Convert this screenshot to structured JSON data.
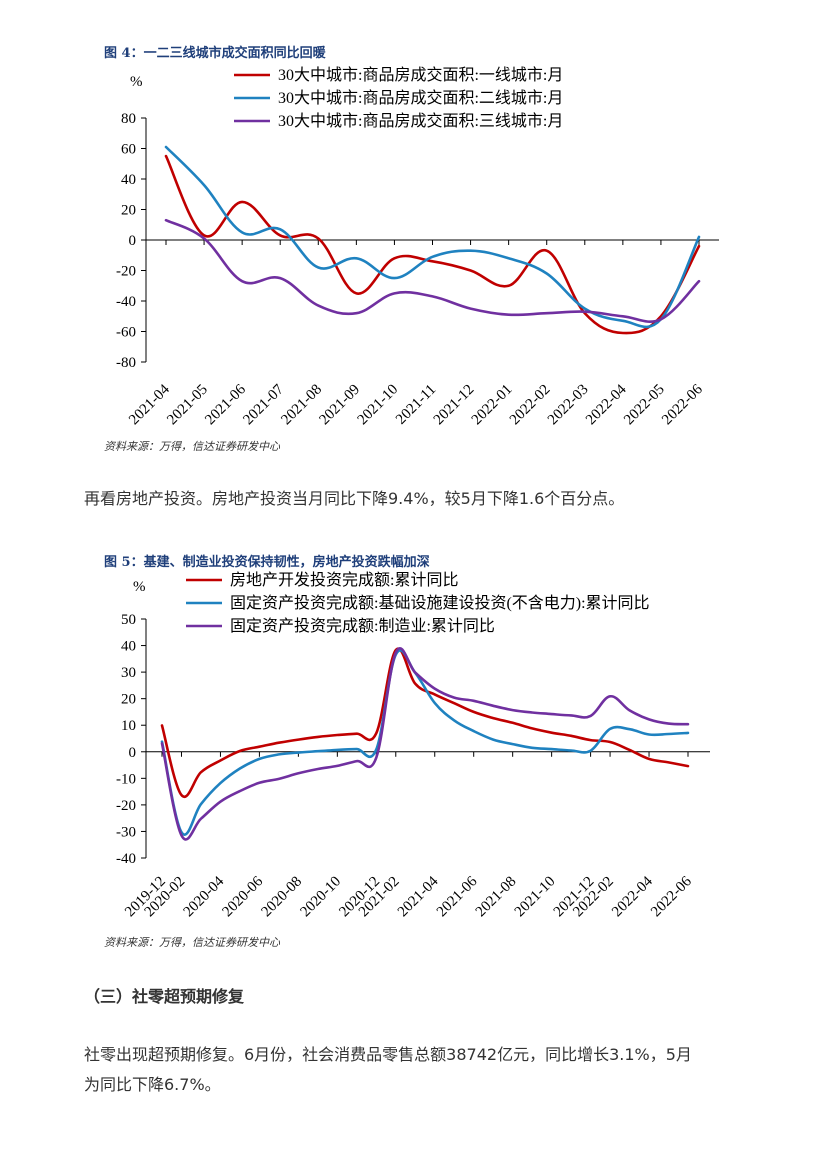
{
  "figures": [
    {
      "title": "图 4：一二三线城市成交面积同比回暖",
      "source": "资料来源：万得，信达证券研发中心",
      "unit": "%",
      "chart_data": {
        "type": "line",
        "title": "图 4：一二三线城市成交面积同比回暖",
        "ylabel": "%",
        "ylim": [
          -80,
          80
        ],
        "yticks": [
          "80",
          "60",
          "40",
          "20",
          "0",
          "-20",
          "-40",
          "-60",
          "-80"
        ],
        "yticks_values": [
          80,
          60,
          40,
          20,
          0,
          -20,
          -40,
          -60,
          -80
        ],
        "categories": [
          "2021-04",
          "2021-05",
          "2021-06",
          "2021-07",
          "2021-08",
          "2021-09",
          "2021-10",
          "2021-11",
          "2021-12",
          "2022-01",
          "2022-02",
          "2022-03",
          "2022-04",
          "2022-05",
          "2022-06"
        ],
        "series": [
          {
            "name": "30大中城市:商品房成交面积:一线城市:月",
            "color": "#c00000",
            "values": [
              55,
              3,
              25,
              3,
              1,
              -35,
              -12,
              -14,
              -20,
              -30,
              -7,
              -48,
              -61,
              -50,
              -4
            ]
          },
          {
            "name": "30大中城市:商品房成交面积:二线城市:月",
            "color": "#1f82c0",
            "values": [
              61,
              36,
              5,
              7,
              -18,
              -12,
              -25,
              -11,
              -7,
              -12,
              -22,
              -45,
              -53,
              -52,
              2
            ]
          },
          {
            "name": "30大中城市:商品房成交面积:三线城市:月",
            "color": "#7030a0",
            "values": [
              13,
              1,
              -27,
              -25,
              -43,
              -48,
              -35,
              -37,
              -45,
              -49,
              -48,
              -47,
              -50,
              -52,
              -27
            ]
          }
        ]
      }
    },
    {
      "title": "图 5：基建、制造业投资保持韧性，房地产投资跌幅加深",
      "source": "资料来源：万得，信达证券研发中心",
      "unit": "%",
      "chart_data": {
        "type": "line",
        "title": "图 5：基建、制造业投资保持韧性，房地产投资跌幅加深",
        "ylabel": "%",
        "ylim": [
          -40,
          50
        ],
        "yticks": [
          "50",
          "40",
          "30",
          "20",
          "10",
          "0",
          "-10",
          "-20",
          "-30",
          "-40"
        ],
        "yticks_values": [
          50,
          40,
          30,
          20,
          10,
          0,
          -10,
          -20,
          -30,
          -40
        ],
        "categories": [
          "2019-12",
          "2020-02",
          "2020-03",
          "2020-04",
          "2020-05",
          "2020-06",
          "2020-07",
          "2020-08",
          "2020-09",
          "2020-10",
          "2020-11",
          "2020-12",
          "2021-02",
          "2021-03",
          "2021-04",
          "2021-05",
          "2021-06",
          "2021-07",
          "2021-08",
          "2021-09",
          "2021-10",
          "2021-11",
          "2021-12",
          "2022-02",
          "2022-03",
          "2022-04",
          "2022-05",
          "2022-06"
        ],
        "xtick_labels": [
          "2019-12",
          "2020-02",
          "2020-04",
          "2020-06",
          "2020-08",
          "2020-10",
          "2020-12",
          "2021-02",
          "2021-04",
          "2021-06",
          "2021-08",
          "2021-10",
          "2021-12",
          "2022-02",
          "2022-04",
          "2022-06"
        ],
        "series": [
          {
            "name": "房地产开发投资完成额:累计同比",
            "color": "#c00000",
            "values": [
              9.9,
              -16.3,
              -7.7,
              -3.3,
              0.3,
              1.9,
              3.4,
              4.6,
              5.6,
              6.3,
              6.8,
              7.0,
              38.3,
              25.6,
              21.6,
              18.3,
              15.0,
              12.7,
              10.9,
              8.8,
              7.2,
              6.0,
              4.4,
              3.7,
              0.7,
              -2.7,
              -4.0,
              -5.4
            ]
          },
          {
            "name": "固定资产投资完成额:基础设施建设投资(不含电力):累计同比",
            "color": "#1f82c0",
            "values": [
              3.8,
              -30.3,
              -19.7,
              -11.8,
              -6.3,
              -2.7,
              -1.0,
              -0.3,
              0.2,
              0.7,
              1.0,
              0.9,
              36.6,
              29.7,
              18.4,
              11.8,
              7.8,
              4.6,
              2.9,
              1.5,
              1.0,
              0.5,
              0.4,
              8.6,
              8.5,
              6.5,
              6.7,
              7.1
            ]
          },
          {
            "name": "固定资产投资完成额:制造业:累计同比",
            "color": "#7030a0",
            "values": [
              3.1,
              -31.5,
              -25.2,
              -18.8,
              -14.8,
              -11.7,
              -10.2,
              -8.1,
              -6.5,
              -5.3,
              -3.5,
              -2.2,
              37.3,
              29.8,
              23.8,
              20.4,
              19.2,
              17.3,
              15.7,
              14.8,
              14.2,
              13.7,
              13.5,
              20.9,
              15.6,
              12.2,
              10.6,
              10.4
            ]
          }
        ]
      }
    }
  ],
  "paragraphs": {
    "p1": "再看房地产投资。房地产投资当月同比下降9.4%，较5月下降1.6个百分点。",
    "heading3": "（三）社零超预期修复",
    "p2_line1": "社零出现超预期修复。6月份，社会消费品零售总额38742亿元，同比增长3.1%，5月",
    "p2_line2": "为同比下降6.7%。"
  }
}
